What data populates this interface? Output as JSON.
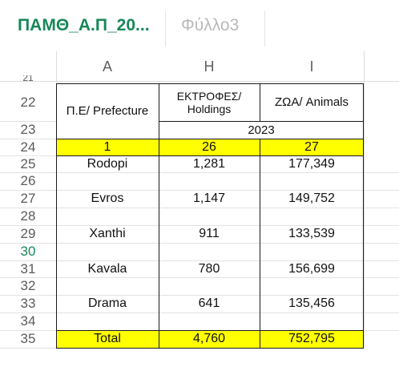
{
  "tabs": [
    {
      "label": "ΠΑΜΘ_Α.Π_20...",
      "active": true
    },
    {
      "label": "Φύλλο3",
      "active": false
    }
  ],
  "columns": [
    "A",
    "H",
    "I"
  ],
  "rows": [
    {
      "num": "21",
      "a": "",
      "h": "",
      "i": ""
    },
    {
      "num": "22",
      "a": "Π.Ε/ Prefecture",
      "h": "ΕΚΤΡΟΦΕΣ/ Holdings",
      "i": "ΖΩΑ/ Animals"
    },
    {
      "num": "23",
      "a": "",
      "h": "2023",
      "i": ""
    },
    {
      "num": "24",
      "a": "1",
      "h": "26",
      "i": "27"
    },
    {
      "num": "25",
      "a": "Rodopi",
      "h": "1,281",
      "i": "177,349"
    },
    {
      "num": "26",
      "a": "",
      "h": "",
      "i": ""
    },
    {
      "num": "27",
      "a": "Evros",
      "h": "1,147",
      "i": "149,752"
    },
    {
      "num": "28",
      "a": "",
      "h": "",
      "i": ""
    },
    {
      "num": "29",
      "a": "Xanthi",
      "h": "911",
      "i": "133,539"
    },
    {
      "num": "30",
      "a": "",
      "h": "",
      "i": ""
    },
    {
      "num": "31",
      "a": "Kavala",
      "h": "780",
      "i": "156,699"
    },
    {
      "num": "32",
      "a": "",
      "h": "",
      "i": ""
    },
    {
      "num": "33",
      "a": "Drama",
      "h": "641",
      "i": "135,456"
    },
    {
      "num": "34",
      "a": "",
      "h": "",
      "i": ""
    },
    {
      "num": "35",
      "a": "Total",
      "h": "4,760",
      "i": "752,795"
    }
  ],
  "selected_row": "30",
  "colors": {
    "accent": "#188759",
    "highlight": "#ffff00",
    "inactive_tab": "#b9b9b9"
  }
}
